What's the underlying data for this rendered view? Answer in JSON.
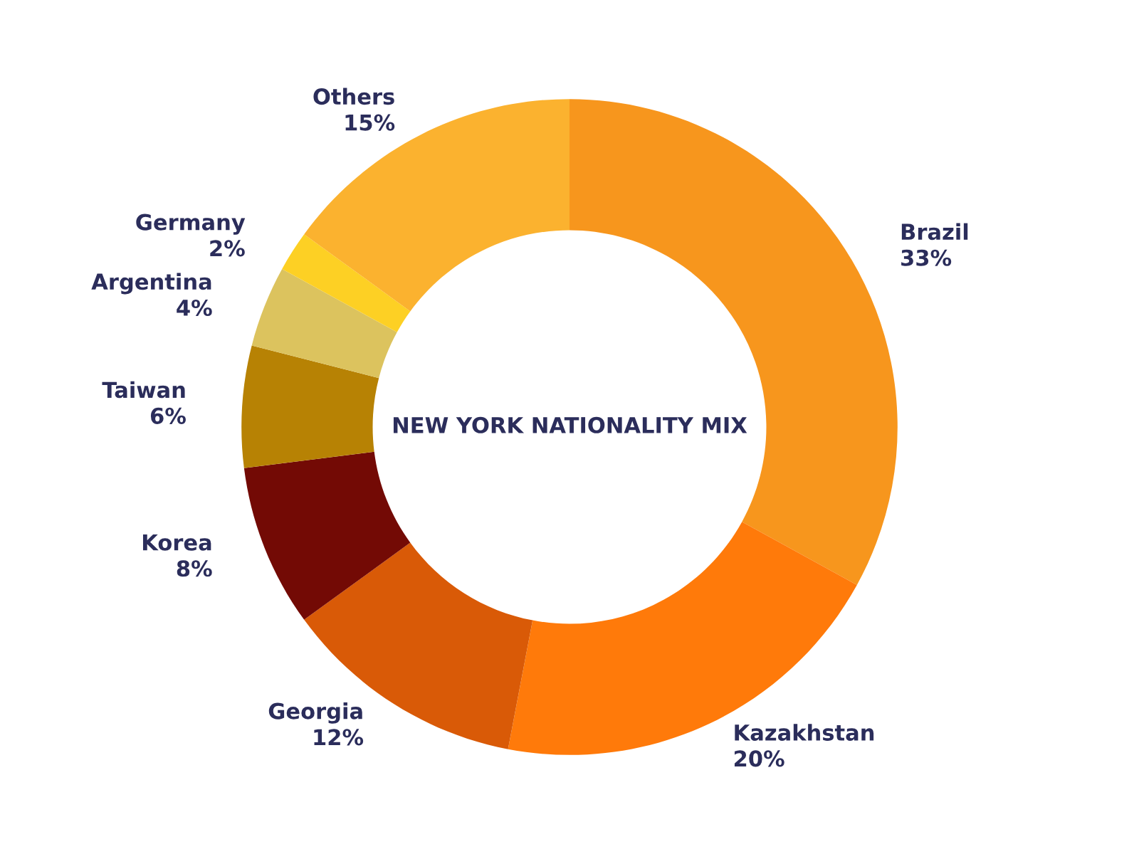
{
  "chart_data": {
    "type": "donut",
    "title": "NEW YORK NATIONALITY MIX",
    "categories": [
      "Brazil",
      "Kazakhstan",
      "Georgia",
      "Korea",
      "Taiwan",
      "Argentina",
      "Germany",
      "Others"
    ],
    "values": [
      33,
      20,
      12,
      8,
      6,
      4,
      2,
      15
    ],
    "value_labels": [
      "33%",
      "20%",
      "12%",
      "8%",
      "6%",
      "4%",
      "2%",
      "15%"
    ],
    "colors": [
      "#f7961d",
      "#ff7a0a",
      "#d95a07",
      "#730a05",
      "#b78204",
      "#dcc35e",
      "#fdd024",
      "#fbb22f"
    ]
  }
}
